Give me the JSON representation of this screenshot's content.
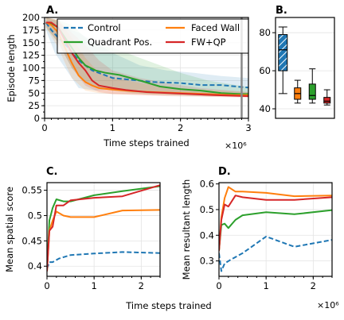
{
  "colors": {
    "Control": "#1f77b4",
    "Quadrant Pos.": "#2ca02c",
    "Faced Wall": "#ff7f0e",
    "FW+QP": "#d62728"
  },
  "figure": {
    "shared_xlabel": "Time steps trained",
    "x_offset_label": "×10⁶"
  },
  "chart_data": [
    {
      "id": "A",
      "panel_label": "A.",
      "type": "line",
      "xlabel": "Time steps trained",
      "ylabel": "Episode length",
      "x_offset": "×10⁶",
      "xlim": [
        0,
        3
      ],
      "ylim": [
        0,
        200
      ],
      "xticks": [
        "0",
        "1",
        "2",
        "3"
      ],
      "xtick_values": [
        0,
        1,
        2,
        3
      ],
      "yticks": [
        "0",
        "25",
        "50",
        "75",
        "100",
        "125",
        "150",
        "175",
        "200"
      ],
      "ytick_values": [
        0,
        25,
        50,
        75,
        100,
        125,
        150,
        175,
        200
      ],
      "legend_placement": "top",
      "legend": [
        "Control",
        "Quadrant Pos.",
        "Faced Wall",
        "FW+QP"
      ],
      "vertical_marker_x": 2.9,
      "series": [
        {
          "name": "Control",
          "style": "dashed",
          "points": [
            [
              0.02,
              190
            ],
            [
              0.1,
              175
            ],
            [
              0.2,
              160
            ],
            [
              0.35,
              140
            ],
            [
              0.5,
              115
            ],
            [
              0.7,
              95
            ],
            [
              1.0,
              80
            ],
            [
              1.3,
              76
            ],
            [
              1.6,
              72
            ],
            [
              2.0,
              70
            ],
            [
              2.3,
              66
            ],
            [
              2.6,
              66
            ],
            [
              2.9,
              62
            ],
            [
              3.0,
              61
            ]
          ],
          "band": [
            [
              0.02,
              200,
              175
            ],
            [
              0.15,
              195,
              130
            ],
            [
              0.3,
              180,
              100
            ],
            [
              0.5,
              170,
              60
            ],
            [
              0.75,
              150,
              55
            ],
            [
              1.0,
              130,
              58
            ],
            [
              1.4,
              105,
              55
            ],
            [
              1.8,
              95,
              50
            ],
            [
              2.2,
              90,
              48
            ],
            [
              2.6,
              84,
              45
            ],
            [
              3.0,
              80,
              44
            ]
          ]
        },
        {
          "name": "Quadrant Pos.",
          "style": "solid",
          "points": [
            [
              0.02,
              190
            ],
            [
              0.1,
              188
            ],
            [
              0.2,
              180
            ],
            [
              0.3,
              160
            ],
            [
              0.4,
              140
            ],
            [
              0.5,
              120
            ],
            [
              0.6,
              105
            ],
            [
              0.75,
              95
            ],
            [
              0.9,
              90
            ],
            [
              1.1,
              86
            ],
            [
              1.4,
              75
            ],
            [
              1.7,
              63
            ],
            [
              2.0,
              58
            ],
            [
              2.3,
              55
            ],
            [
              2.6,
              50
            ],
            [
              2.9,
              48
            ],
            [
              3.0,
              48
            ]
          ],
          "band": [
            [
              0.02,
              200,
              180
            ],
            [
              0.2,
              195,
              150
            ],
            [
              0.4,
              185,
              100
            ],
            [
              0.6,
              160,
              70
            ],
            [
              0.8,
              145,
              60
            ],
            [
              1.0,
              140,
              55
            ],
            [
              1.3,
              125,
              50
            ],
            [
              1.6,
              110,
              47
            ],
            [
              2.0,
              90,
              45
            ],
            [
              2.4,
              75,
              44
            ],
            [
              3.0,
              62,
              44
            ]
          ]
        },
        {
          "name": "Faced Wall",
          "style": "solid",
          "points": [
            [
              0.02,
              190
            ],
            [
              0.1,
              185
            ],
            [
              0.2,
              170
            ],
            [
              0.3,
              140
            ],
            [
              0.4,
              110
            ],
            [
              0.5,
              85
            ],
            [
              0.6,
              72
            ],
            [
              0.7,
              65
            ],
            [
              0.8,
              60
            ],
            [
              1.0,
              57
            ],
            [
              1.3,
              54
            ],
            [
              1.6,
              52
            ],
            [
              2.0,
              50
            ],
            [
              2.4,
              48
            ],
            [
              2.8,
              46
            ],
            [
              3.0,
              46
            ]
          ],
          "band": [
            [
              0.02,
              200,
              180
            ],
            [
              0.2,
              195,
              140
            ],
            [
              0.4,
              160,
              80
            ],
            [
              0.6,
              120,
              55
            ],
            [
              0.8,
              90,
              50
            ],
            [
              1.0,
              80,
              48
            ],
            [
              1.5,
              68,
              46
            ],
            [
              2.0,
              60,
              45
            ],
            [
              2.5,
              55,
              43
            ],
            [
              3.0,
              52,
              42
            ]
          ]
        },
        {
          "name": "FW+QP",
          "style": "solid",
          "points": [
            [
              0.02,
              190
            ],
            [
              0.1,
              190
            ],
            [
              0.2,
              180
            ],
            [
              0.3,
              155
            ],
            [
              0.4,
              130
            ],
            [
              0.5,
              110
            ],
            [
              0.6,
              95
            ],
            [
              0.7,
              75
            ],
            [
              0.8,
              65
            ],
            [
              1.0,
              60
            ],
            [
              1.2,
              56
            ],
            [
              1.5,
              52
            ],
            [
              2.0,
              49
            ],
            [
              2.5,
              46
            ],
            [
              3.0,
              44
            ]
          ],
          "band": [
            [
              0.02,
              200,
              182
            ],
            [
              0.2,
              195,
              150
            ],
            [
              0.4,
              170,
              100
            ],
            [
              0.6,
              145,
              65
            ],
            [
              0.8,
              115,
              52
            ],
            [
              1.0,
              95,
              48
            ],
            [
              1.4,
              80,
              46
            ],
            [
              1.8,
              70,
              44
            ],
            [
              2.3,
              60,
              43
            ],
            [
              3.0,
              52,
              41
            ]
          ]
        }
      ]
    },
    {
      "id": "B",
      "panel_label": "B.",
      "type": "box",
      "ylim": [
        35,
        88
      ],
      "yticks": [
        "40",
        "60",
        "80"
      ],
      "ytick_values": [
        40,
        60,
        80
      ],
      "boxes": [
        {
          "name": "Control",
          "hatched": true,
          "whislo": 48,
          "q1": 60,
          "med": 71,
          "q3": 79,
          "whishi": 83
        },
        {
          "name": "Faced Wall",
          "hatched": false,
          "whislo": 43,
          "q1": 45,
          "med": 48,
          "q3": 51,
          "whishi": 55
        },
        {
          "name": "Quadrant Pos.",
          "hatched": false,
          "whislo": 43,
          "q1": 45,
          "med": 47,
          "q3": 53,
          "whishi": 61
        },
        {
          "name": "FW+QP",
          "hatched": false,
          "whislo": 42,
          "q1": 43,
          "med": 44,
          "q3": 46,
          "whishi": 50
        }
      ]
    },
    {
      "id": "C",
      "panel_label": "C.",
      "type": "line",
      "ylabel": "Mean spatial score",
      "xlim": [
        0,
        2.4
      ],
      "ylim": [
        0.38,
        0.565
      ],
      "xticks": [
        "0",
        "1",
        "2"
      ],
      "xtick_values": [
        0,
        1,
        2
      ],
      "yticks": [
        "0.4",
        "0.45",
        "0.5",
        "0.55"
      ],
      "ytick_values": [
        0.4,
        0.45,
        0.5,
        0.55
      ],
      "series": [
        {
          "name": "Control",
          "style": "dashed",
          "points": [
            [
              0,
              0.395
            ],
            [
              0.05,
              0.408
            ],
            [
              0.12,
              0.408
            ],
            [
              0.25,
              0.415
            ],
            [
              0.5,
              0.422
            ],
            [
              1.0,
              0.425
            ],
            [
              1.6,
              0.428
            ],
            [
              2.4,
              0.426
            ]
          ]
        },
        {
          "name": "Quadrant Pos.",
          "style": "solid",
          "points": [
            [
              0,
              0.39
            ],
            [
              0.05,
              0.49
            ],
            [
              0.12,
              0.515
            ],
            [
              0.2,
              0.532
            ],
            [
              0.35,
              0.528
            ],
            [
              0.5,
              0.528
            ],
            [
              1.0,
              0.54
            ],
            [
              1.6,
              0.548
            ],
            [
              2.4,
              0.558
            ]
          ]
        },
        {
          "name": "Faced Wall",
          "style": "solid",
          "points": [
            [
              0,
              0.39
            ],
            [
              0.05,
              0.47
            ],
            [
              0.12,
              0.49
            ],
            [
              0.2,
              0.508
            ],
            [
              0.35,
              0.5
            ],
            [
              0.5,
              0.497
            ],
            [
              1.0,
              0.497
            ],
            [
              1.6,
              0.51
            ],
            [
              2.4,
              0.511
            ]
          ]
        },
        {
          "name": "FW+QP",
          "style": "solid",
          "points": [
            [
              0,
              0.39
            ],
            [
              0.05,
              0.47
            ],
            [
              0.12,
              0.478
            ],
            [
              0.2,
              0.52
            ],
            [
              0.35,
              0.52
            ],
            [
              0.5,
              0.53
            ],
            [
              1.0,
              0.535
            ],
            [
              1.6,
              0.538
            ],
            [
              2.4,
              0.56
            ]
          ]
        }
      ]
    },
    {
      "id": "D",
      "panel_label": "D.",
      "type": "line",
      "ylabel": "Mean resultant length",
      "x_offset": "×10⁶",
      "xlim": [
        0,
        2.4
      ],
      "ylim": [
        0.24,
        0.605
      ],
      "xticks": [
        "0",
        "1",
        "2"
      ],
      "xtick_values": [
        0,
        1,
        2
      ],
      "yticks": [
        "0.3",
        "0.4",
        "0.5",
        "0.6"
      ],
      "ytick_values": [
        0.3,
        0.4,
        0.5,
        0.6
      ],
      "series": [
        {
          "name": "Control",
          "style": "dashed",
          "points": [
            [
              0,
              0.33
            ],
            [
              0.05,
              0.26
            ],
            [
              0.12,
              0.29
            ],
            [
              0.25,
              0.305
            ],
            [
              0.5,
              0.33
            ],
            [
              1.0,
              0.395
            ],
            [
              1.6,
              0.355
            ],
            [
              2.4,
              0.382
            ]
          ]
        },
        {
          "name": "Quadrant Pos.",
          "style": "solid",
          "points": [
            [
              0,
              0.34
            ],
            [
              0.05,
              0.44
            ],
            [
              0.12,
              0.445
            ],
            [
              0.2,
              0.428
            ],
            [
              0.35,
              0.46
            ],
            [
              0.5,
              0.478
            ],
            [
              1.0,
              0.49
            ],
            [
              1.6,
              0.482
            ],
            [
              2.4,
              0.498
            ]
          ]
        },
        {
          "name": "Faced Wall",
          "style": "solid",
          "points": [
            [
              0,
              0.34
            ],
            [
              0.05,
              0.47
            ],
            [
              0.12,
              0.545
            ],
            [
              0.2,
              0.588
            ],
            [
              0.35,
              0.57
            ],
            [
              0.5,
              0.57
            ],
            [
              1.0,
              0.565
            ],
            [
              1.6,
              0.552
            ],
            [
              2.4,
              0.555
            ]
          ]
        },
        {
          "name": "FW+QP",
          "style": "solid",
          "points": [
            [
              0,
              0.34
            ],
            [
              0.05,
              0.46
            ],
            [
              0.12,
              0.52
            ],
            [
              0.2,
              0.512
            ],
            [
              0.35,
              0.555
            ],
            [
              0.5,
              0.548
            ],
            [
              1.0,
              0.538
            ],
            [
              1.6,
              0.538
            ],
            [
              2.4,
              0.548
            ]
          ]
        }
      ]
    }
  ]
}
